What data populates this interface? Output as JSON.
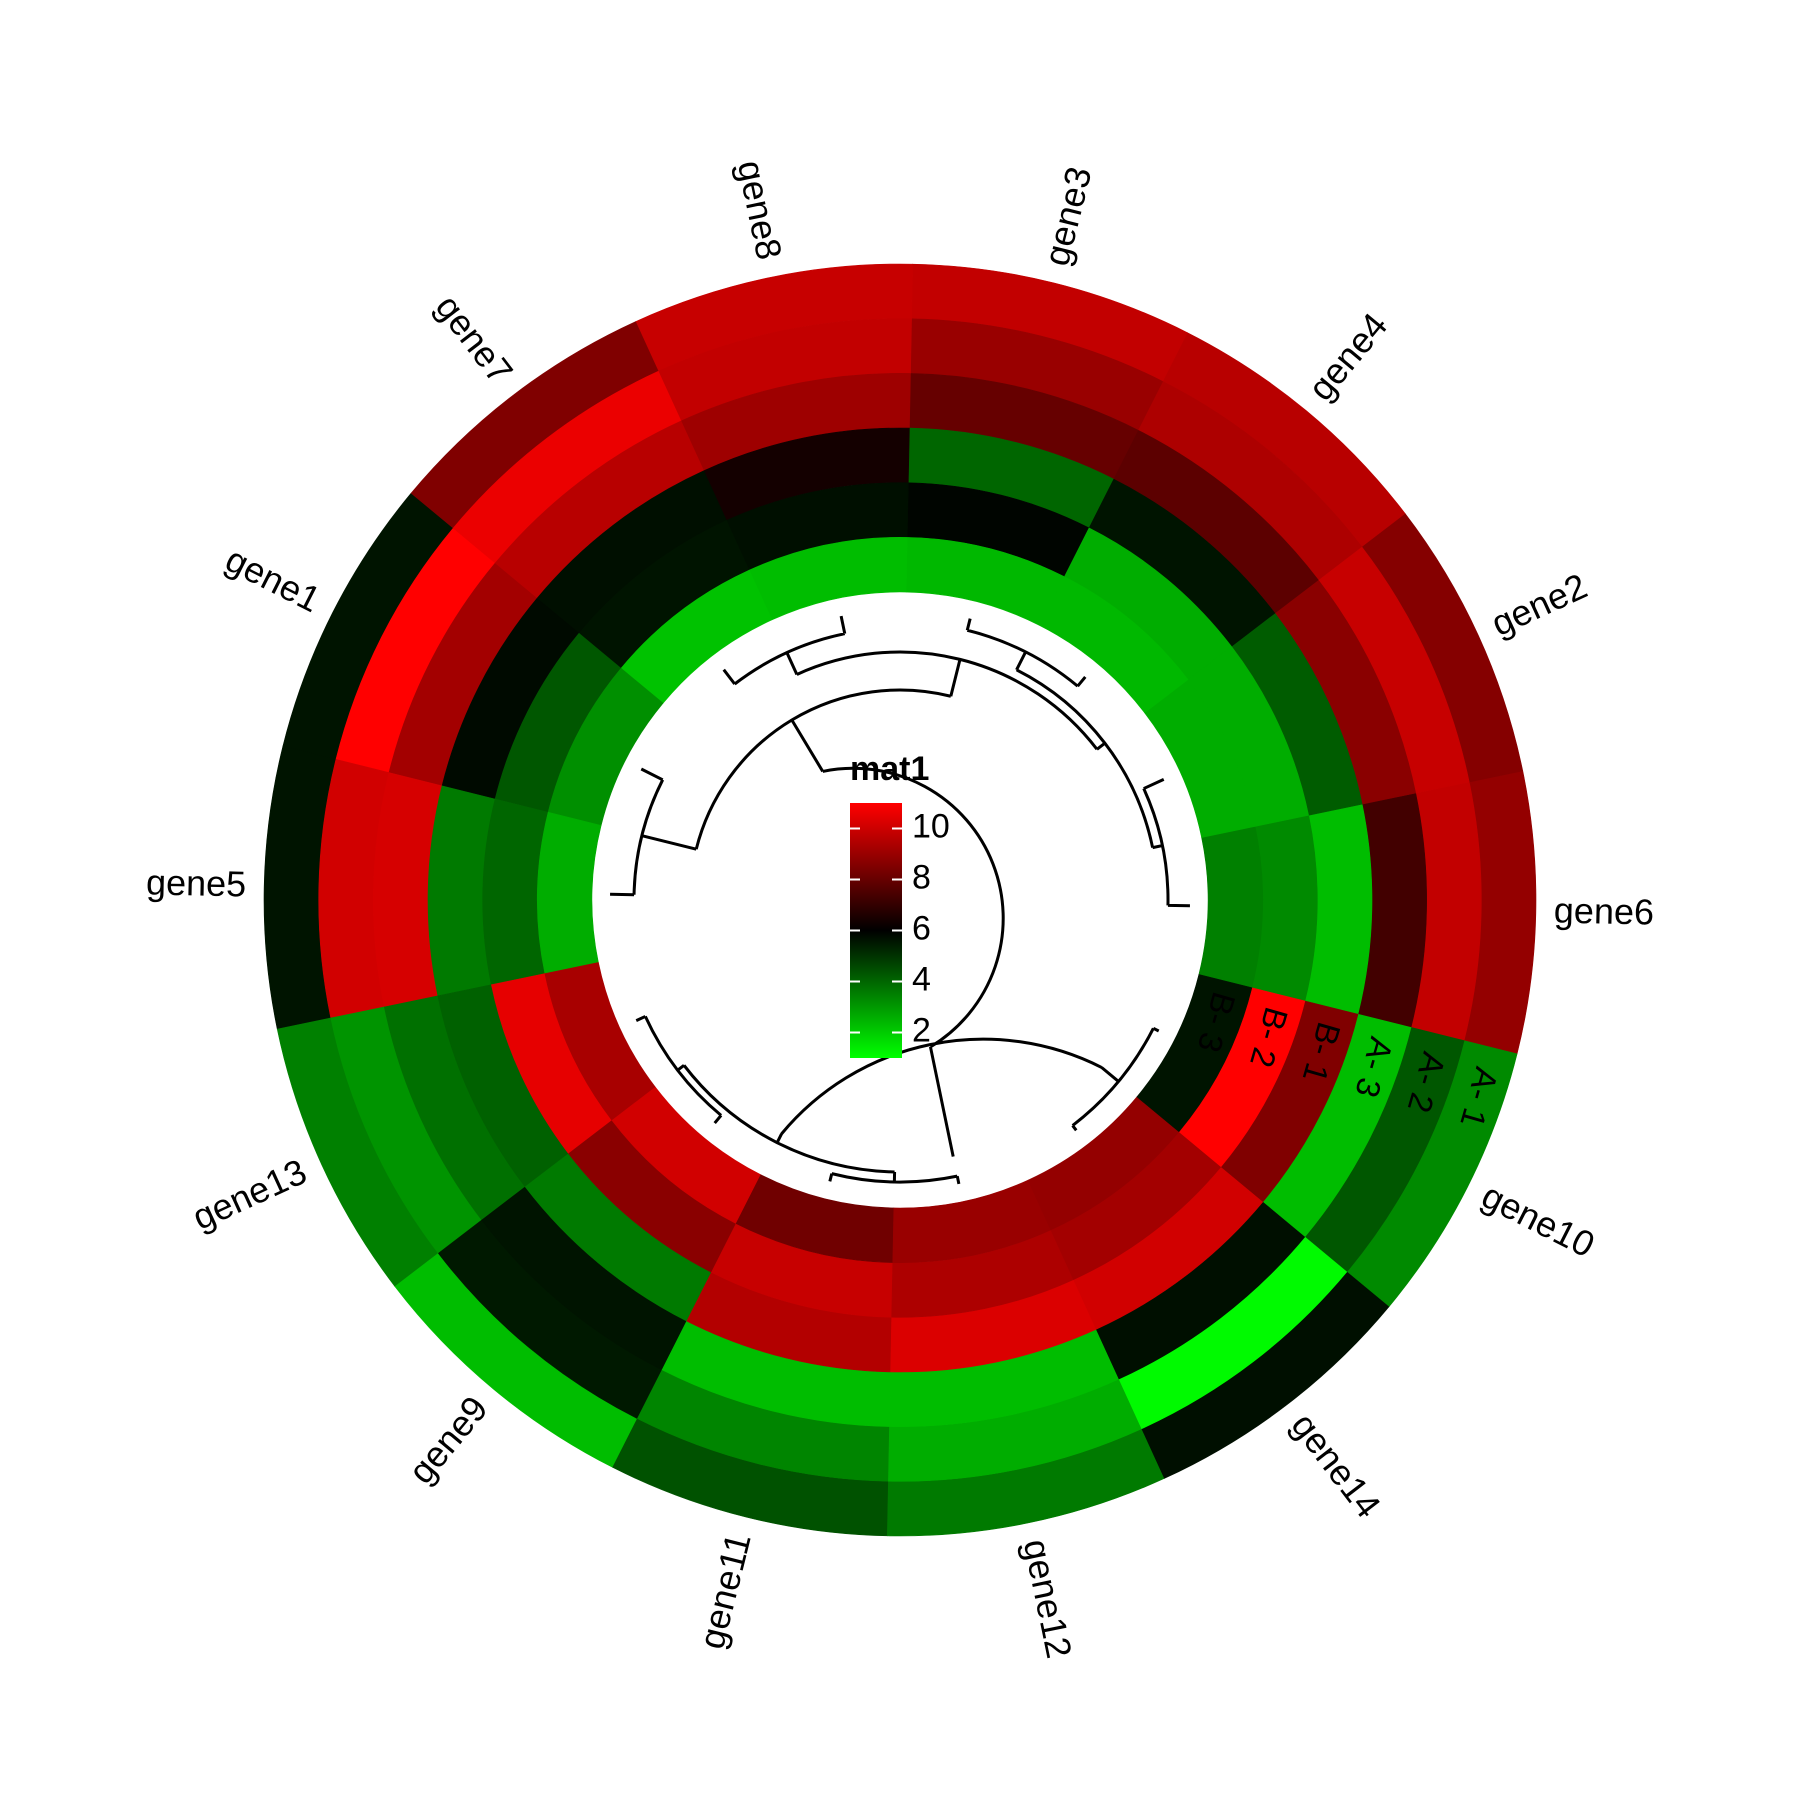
{
  "chart_data": {
    "type": "heatmap",
    "layout": "circular",
    "genes": [
      "gene6",
      "gene2",
      "gene4",
      "gene3",
      "gene8",
      "gene7",
      "gene1",
      "gene5",
      "gene13",
      "gene9",
      "gene11",
      "gene12",
      "gene14",
      "gene10"
    ],
    "tracks": [
      "A- 1",
      "A- 2",
      "A- 3",
      "B- 1",
      "B- 2",
      "B- 3"
    ],
    "values": [
      [
        8.9,
        9.8,
        7.3,
        2.3,
        3.3,
        3.5
      ],
      [
        8.6,
        9.9,
        8.7,
        4.2,
        2.6,
        2.6
      ],
      [
        9.6,
        9.4,
        7.8,
        5.6,
        2.6,
        2.4
      ],
      [
        9.8,
        9.0,
        8.0,
        4.0,
        5.9,
        2.4
      ],
      [
        9.9,
        9.8,
        9.1,
        6.4,
        5.7,
        2.3
      ],
      [
        8.5,
        10.6,
        9.6,
        5.7,
        5.6,
        2.2
      ],
      [
        5.6,
        11.0,
        9.2,
        5.8,
        4.3,
        3.2
      ],
      [
        5.6,
        10.1,
        10.2,
        3.6,
        4.0,
        2.6
      ],
      [
        3.5,
        3.1,
        3.8,
        4.1,
        10.5,
        9.3
      ],
      [
        2.3,
        5.5,
        5.6,
        3.6,
        8.7,
        10.1
      ],
      [
        4.4,
        3.4,
        2.3,
        9.5,
        9.9,
        8.2
      ],
      [
        3.6,
        2.6,
        2.3,
        10.3,
        9.4,
        9.0
      ],
      [
        5.7,
        1.1,
        5.7,
        10.1,
        9.2,
        8.9
      ],
      [
        3.3,
        4.3,
        2.3,
        8.5,
        11.0,
        5.6
      ]
    ],
    "legend": {
      "title": "mat1",
      "ticks": [
        2,
        4,
        6,
        8,
        10
      ],
      "tick_labels": [
        "2",
        "4",
        "6",
        "8",
        "10"
      ],
      "range": [
        1,
        11
      ],
      "colors": [
        "#00ff00",
        "#000000",
        "#ff0000"
      ]
    }
  }
}
